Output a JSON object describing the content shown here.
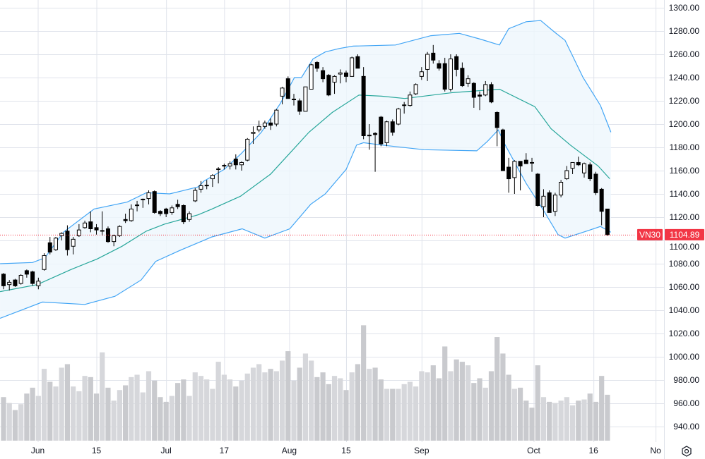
{
  "symbol": "VN30",
  "last_price": "1104.89",
  "colors": {
    "up_body": "#ffffff",
    "down_body": "#000000",
    "wick": "#000000",
    "band_line": "#42a5f5",
    "band_fill": "#eef6fd",
    "basis_line": "#26a69a",
    "price_badge": "#f23645",
    "grid": "#e0e3eb",
    "volume_up": "#d6d7db",
    "volume_down": "#c9cace"
  },
  "chart_data": {
    "type": "candlestick",
    "title": "VN30",
    "y_axis": {
      "min": 930,
      "max": 1306,
      "ticks": [
        "1300.00",
        "1280.00",
        "1260.00",
        "1240.00",
        "1220.00",
        "1200.00",
        "1180.00",
        "1160.00",
        "1140.00",
        "1120.00",
        "1100.00",
        "1080.00",
        "1060.00",
        "1040.00",
        "1020.00",
        "1000.00",
        "980.00",
        "960.00",
        "940.00"
      ]
    },
    "x_axis": {
      "ticks": [
        {
          "label": "Jun",
          "index": 5.9
        },
        {
          "label": "15",
          "index": 16
        },
        {
          "label": "Jul",
          "index": 28
        },
        {
          "label": "17",
          "index": 38
        },
        {
          "label": "Aug",
          "index": 49.2
        },
        {
          "label": "15",
          "index": 59
        },
        {
          "label": "Sep",
          "index": 72
        },
        {
          "label": "Oct",
          "index": 91.3
        },
        {
          "label": "16",
          "index": 101.6
        },
        {
          "label": "No",
          "index": 112.3
        }
      ]
    },
    "grid": true,
    "ohlc": [
      [
        1071,
        1072,
        1058,
        1061
      ],
      [
        1062,
        1066,
        1057,
        1064
      ],
      [
        1066,
        1067,
        1060,
        1061
      ],
      [
        1063,
        1071,
        1062,
        1070
      ],
      [
        1074,
        1075,
        1068,
        1071
      ],
      [
        1073,
        1074,
        1061,
        1063
      ],
      [
        1061,
        1068,
        1058,
        1065
      ],
      [
        1075,
        1089,
        1074,
        1087
      ],
      [
        1098,
        1103,
        1088,
        1090
      ],
      [
        1092,
        1103,
        1091,
        1102
      ],
      [
        1104,
        1107,
        1100,
        1106
      ],
      [
        1108,
        1113,
        1087,
        1092
      ],
      [
        1095,
        1103,
        1088,
        1101
      ],
      [
        1104,
        1114,
        1103,
        1109
      ],
      [
        1111,
        1117,
        1110,
        1115
      ],
      [
        1116,
        1125,
        1107,
        1110
      ],
      [
        1111,
        1114,
        1105,
        1109
      ],
      [
        1108,
        1125,
        1104,
        1108.5
      ],
      [
        1110,
        1112,
        1098,
        1099
      ],
      [
        1099,
        1105,
        1095,
        1104
      ],
      [
        1104,
        1113,
        1103,
        1112
      ],
      [
        1118,
        1123,
        1115,
        1117
      ],
      [
        1117,
        1131,
        1116,
        1127
      ],
      [
        1130,
        1134,
        1125,
        1130.5
      ],
      [
        1135,
        1136,
        1128,
        1135.5
      ],
      [
        1136,
        1143,
        1131,
        1141
      ],
      [
        1142,
        1143,
        1123,
        1124
      ],
      [
        1125,
        1126,
        1121,
        1123
      ],
      [
        1127,
        1128,
        1120,
        1123
      ],
      [
        1124,
        1130,
        1122,
        1128
      ],
      [
        1131,
        1135,
        1127,
        1129
      ],
      [
        1130,
        1131,
        1114,
        1116
      ],
      [
        1118,
        1125,
        1116,
        1123
      ],
      [
        1134,
        1145,
        1133,
        1143
      ],
      [
        1144,
        1151,
        1141,
        1147
      ],
      [
        1147,
        1152,
        1144,
        1147.5
      ],
      [
        1153,
        1157,
        1146,
        1156
      ],
      [
        1161,
        1163,
        1149,
        1161.5
      ],
      [
        1164,
        1166,
        1161,
        1164.5
      ],
      [
        1164,
        1168,
        1161,
        1166
      ],
      [
        1170,
        1174,
        1161,
        1165
      ],
      [
        1165,
        1168,
        1160,
        1167
      ],
      [
        1169,
        1188,
        1168,
        1187
      ],
      [
        1192,
        1198,
        1183,
        1193
      ],
      [
        1195,
        1203,
        1193,
        1198
      ],
      [
        1198,
        1203,
        1196,
        1201
      ],
      [
        1201,
        1205,
        1195,
        1199
      ],
      [
        1200,
        1213,
        1198,
        1212
      ],
      [
        1224,
        1232,
        1217,
        1231
      ],
      [
        1239,
        1241,
        1222,
        1222
      ],
      [
        1221,
        1226,
        1216,
        1221.5
      ],
      [
        1220,
        1222,
        1208,
        1211
      ],
      [
        1211,
        1232,
        1211,
        1232
      ],
      [
        1230,
        1252,
        1230,
        1251
      ],
      [
        1253,
        1254,
        1245,
        1248
      ],
      [
        1246,
        1249,
        1236,
        1239
      ],
      [
        1242,
        1243,
        1224,
        1225
      ],
      [
        1236,
        1242,
        1226,
        1241
      ],
      [
        1243,
        1247,
        1235,
        1244
      ],
      [
        1244,
        1246,
        1236,
        1241
      ],
      [
        1241,
        1258,
        1241,
        1257
      ],
      [
        1258,
        1260,
        1248,
        1248
      ],
      [
        1241,
        1249,
        1187,
        1190
      ],
      [
        1190,
        1200,
        1178,
        1190.5
      ],
      [
        1192,
        1193,
        1159,
        1191
      ],
      [
        1206,
        1207,
        1181,
        1183
      ],
      [
        1184,
        1203,
        1181,
        1202
      ],
      [
        1202,
        1204,
        1190,
        1193
      ],
      [
        1200,
        1214,
        1199,
        1213
      ],
      [
        1216,
        1219,
        1209,
        1216.5
      ],
      [
        1216,
        1228,
        1215,
        1225
      ],
      [
        1226,
        1235,
        1225,
        1234
      ],
      [
        1241,
        1249,
        1238,
        1245
      ],
      [
        1247,
        1262,
        1237,
        1260
      ],
      [
        1261,
        1268,
        1252,
        1255
      ],
      [
        1252,
        1255,
        1246,
        1248
      ],
      [
        1252,
        1257,
        1228,
        1230
      ],
      [
        1230,
        1260,
        1228,
        1256
      ],
      [
        1258,
        1260,
        1241,
        1247
      ],
      [
        1248,
        1253,
        1232,
        1233
      ],
      [
        1235,
        1242,
        1232,
        1239
      ],
      [
        1235,
        1236,
        1214,
        1223
      ],
      [
        1225,
        1228,
        1212,
        1224
      ],
      [
        1225,
        1237,
        1224,
        1234
      ],
      [
        1234,
        1236,
        1218,
        1219
      ],
      [
        1210,
        1211,
        1181,
        1197
      ],
      [
        1195,
        1196,
        1160,
        1160
      ],
      [
        1163,
        1171,
        1141,
        1153
      ],
      [
        1154,
        1169,
        1140,
        1168
      ],
      [
        1168,
        1168,
        1143,
        1164
      ],
      [
        1169,
        1175,
        1166,
        1166
      ],
      [
        1167,
        1171,
        1159,
        1166.5
      ],
      [
        1157,
        1158,
        1129,
        1130
      ],
      [
        1129,
        1144,
        1120,
        1138
      ],
      [
        1141,
        1143,
        1124,
        1124
      ],
      [
        1125,
        1141,
        1121,
        1139
      ],
      [
        1139,
        1152,
        1137,
        1150
      ],
      [
        1153,
        1164,
        1152,
        1160
      ],
      [
        1162,
        1167,
        1157,
        1167
      ],
      [
        1167,
        1172,
        1164,
        1165
      ],
      [
        1158,
        1167,
        1154,
        1166
      ],
      [
        1165,
        1167,
        1151,
        1153
      ],
      [
        1157,
        1159,
        1139,
        1141
      ],
      [
        1144,
        1145,
        1113,
        1125
      ],
      [
        1127,
        1127,
        1104,
        1104.89
      ]
    ],
    "volume": [
      37,
      32,
      26,
      31,
      40,
      45,
      38,
      61,
      50,
      46,
      62,
      65,
      46,
      42,
      55,
      54,
      40,
      75,
      45,
      34,
      43,
      47,
      54,
      56,
      41,
      59,
      51,
      37,
      33,
      38,
      49,
      52,
      38,
      58,
      55,
      52,
      44,
      67,
      56,
      52,
      46,
      51,
      57,
      62,
      65,
      58,
      61,
      59,
      68,
      76,
      51,
      62,
      74,
      68,
      54,
      58,
      48,
      55,
      53,
      43,
      58,
      65,
      98,
      61,
      62,
      52,
      44,
      44,
      44,
      48,
      50,
      46,
      59,
      58,
      64,
      53,
      80,
      59,
      69,
      67,
      64,
      49,
      53,
      45,
      59,
      88,
      74,
      56,
      44,
      45,
      34,
      28,
      64,
      37,
      33,
      32,
      34,
      37,
      30,
      34,
      35,
      40,
      33,
      55,
      39
    ],
    "bollinger": {
      "upper": [
        [
          -0.6,
          1080
        ],
        [
          5,
          1081
        ],
        [
          7.1,
          1085
        ],
        [
          10.3,
          1107
        ],
        [
          15.6,
          1127
        ],
        [
          21.3,
          1133
        ],
        [
          24.6,
          1141
        ],
        [
          28.6,
          1140
        ],
        [
          33.5,
          1146
        ],
        [
          34.5,
          1151
        ],
        [
          38,
          1161
        ],
        [
          41,
          1175
        ],
        [
          44.4,
          1193
        ],
        [
          47.7,
          1218
        ],
        [
          50.1,
          1240
        ],
        [
          51.3,
          1240
        ],
        [
          53.3,
          1256
        ],
        [
          55.4,
          1262
        ],
        [
          57.8,
          1265
        ],
        [
          60.2,
          1267
        ],
        [
          67.5,
          1268
        ],
        [
          73.6,
          1276
        ],
        [
          78.5,
          1278
        ],
        [
          82.1,
          1273
        ],
        [
          85.4,
          1268
        ],
        [
          87,
          1282
        ],
        [
          90,
          1288
        ],
        [
          92.5,
          1289
        ],
        [
          94.9,
          1279
        ],
        [
          96.7,
          1272
        ],
        [
          99.8,
          1240
        ],
        [
          102.8,
          1216
        ],
        [
          104.6,
          1193
        ]
      ],
      "basis": [
        [
          -0.6,
          1056
        ],
        [
          5.8,
          1062
        ],
        [
          11.6,
          1075
        ],
        [
          16.1,
          1084
        ],
        [
          20.4,
          1095
        ],
        [
          24.6,
          1108
        ],
        [
          27.7,
          1114
        ],
        [
          33.5,
          1122
        ],
        [
          35.9,
          1127
        ],
        [
          40.8,
          1138
        ],
        [
          46,
          1157
        ],
        [
          49.3,
          1175
        ],
        [
          52.6,
          1193
        ],
        [
          56.6,
          1210
        ],
        [
          61.2,
          1225
        ],
        [
          65.1,
          1224
        ],
        [
          69.1,
          1222
        ],
        [
          77.3,
          1227
        ],
        [
          85.4,
          1230
        ],
        [
          91.5,
          1215
        ],
        [
          94.3,
          1196
        ],
        [
          97.6,
          1182
        ],
        [
          102.4,
          1164
        ],
        [
          104.4,
          1153
        ]
      ],
      "lower": [
        [
          -0.6,
          1033
        ],
        [
          6.7,
          1047
        ],
        [
          14,
          1045
        ],
        [
          19.2,
          1052
        ],
        [
          23.7,
          1066
        ],
        [
          26.2,
          1082
        ],
        [
          30.2,
          1091
        ],
        [
          33.5,
          1098
        ],
        [
          35.9,
          1103
        ],
        [
          41.1,
          1110
        ],
        [
          45,
          1102
        ],
        [
          49.3,
          1110
        ],
        [
          52.9,
          1131
        ],
        [
          55.4,
          1140
        ],
        [
          59,
          1161
        ],
        [
          60.8,
          1182
        ],
        [
          62,
          1184
        ],
        [
          65.1,
          1182
        ],
        [
          72.4,
          1178
        ],
        [
          81.5,
          1177
        ],
        [
          83.3,
          1185
        ],
        [
          85.2,
          1195
        ],
        [
          86.4,
          1182
        ],
        [
          90,
          1149
        ],
        [
          93.1,
          1125
        ],
        [
          95.5,
          1105
        ],
        [
          96.7,
          1102
        ],
        [
          100.4,
          1108
        ],
        [
          102.8,
          1112
        ],
        [
          104.6,
          1107
        ]
      ]
    }
  }
}
